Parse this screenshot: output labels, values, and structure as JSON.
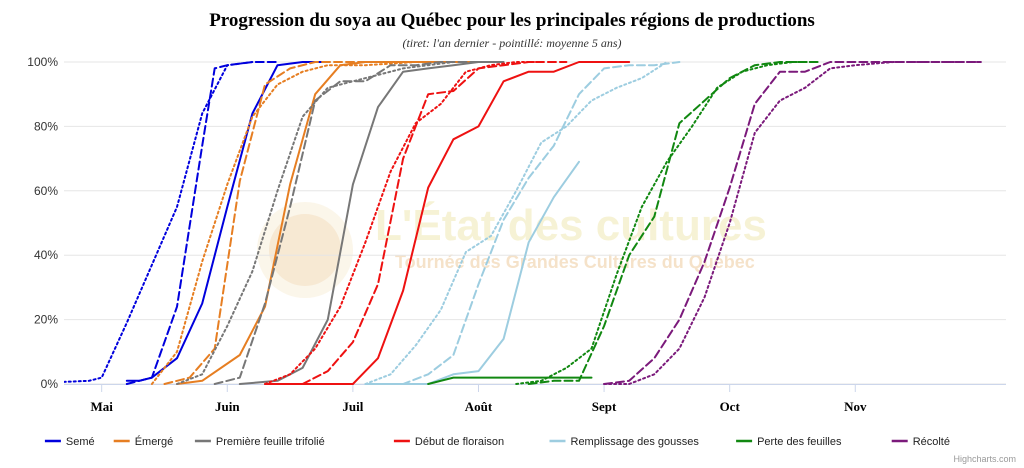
{
  "chart_data": {
    "type": "line",
    "title": "Progression du soya au Québec pour les principales régions de productions",
    "subtitle": "(tiret: l'an dernier - pointillé: moyenne 5 ans)",
    "xlabel": "",
    "ylabel": "",
    "xlim": [
      -3,
      72
    ],
    "ylim": [
      0,
      100
    ],
    "y_ticks": [
      0,
      20,
      40,
      60,
      80,
      100
    ],
    "y_tick_labels": [
      "0%",
      "20%",
      "40%",
      "60%",
      "80%",
      "100%"
    ],
    "x_ticks": [
      0,
      10,
      20,
      30,
      40,
      50,
      60
    ],
    "x_tick_labels": [
      "Mai",
      "Juin",
      "Juil",
      "Août",
      "Sept",
      "Oct",
      "Nov"
    ],
    "grid": "horizontal",
    "legend_position": "bottom",
    "legend": [
      "Semé",
      "Émergé",
      "Première feuille trifolié",
      "Début de floraison",
      "Remplissage des gousses",
      "Perte des feuilles",
      "Récolté"
    ],
    "series": [
      {
        "name": "Semé",
        "color": "#0000dd",
        "style": "solid",
        "points": [
          [
            2,
            1
          ],
          [
            3,
            1
          ],
          [
            4,
            2
          ],
          [
            6,
            8
          ],
          [
            8,
            25
          ],
          [
            10,
            55
          ],
          [
            12,
            84
          ],
          [
            14,
            99
          ],
          [
            16,
            100
          ],
          [
            18,
            100
          ]
        ]
      },
      {
        "name": "Semé",
        "color": "#0000dd",
        "style": "dash",
        "points": [
          [
            2,
            0
          ],
          [
            4,
            2
          ],
          [
            6,
            24
          ],
          [
            8,
            74
          ],
          [
            9,
            98
          ],
          [
            10,
            99
          ],
          [
            12,
            100
          ],
          [
            14,
            100
          ]
        ]
      },
      {
        "name": "Semé",
        "color": "#0000dd",
        "style": "dot",
        "points": [
          [
            -7,
            0
          ],
          [
            -1,
            1
          ],
          [
            0,
            2
          ],
          [
            2,
            19
          ],
          [
            4,
            37
          ],
          [
            6,
            55
          ],
          [
            8,
            84
          ],
          [
            10,
            99
          ],
          [
            12,
            100
          ]
        ]
      },
      {
        "name": "Émergé",
        "color": "#e67e22",
        "style": "solid",
        "points": [
          [
            6,
            0
          ],
          [
            8,
            1
          ],
          [
            11,
            9
          ],
          [
            13,
            24
          ],
          [
            15,
            62
          ],
          [
            17,
            90
          ],
          [
            19,
            99
          ],
          [
            21,
            100
          ],
          [
            24,
            100
          ],
          [
            28,
            100
          ]
        ]
      },
      {
        "name": "Émergé",
        "color": "#e67e22",
        "style": "dash",
        "points": [
          [
            5,
            0
          ],
          [
            7,
            2
          ],
          [
            9,
            11
          ],
          [
            11,
            63
          ],
          [
            13,
            93
          ],
          [
            15,
            98
          ],
          [
            17,
            100
          ],
          [
            19,
            100
          ],
          [
            22,
            100
          ],
          [
            25,
            100
          ],
          [
            27,
            100
          ],
          [
            29,
            100
          ],
          [
            31,
            100
          ]
        ]
      },
      {
        "name": "Émergé",
        "color": "#e67e22",
        "style": "dot",
        "points": [
          [
            4,
            0
          ],
          [
            6,
            10
          ],
          [
            8,
            38
          ],
          [
            10,
            62
          ],
          [
            12,
            83
          ],
          [
            14,
            93
          ],
          [
            16,
            97
          ],
          [
            18,
            99
          ],
          [
            21,
            99
          ],
          [
            25,
            100
          ],
          [
            28,
            100
          ]
        ]
      },
      {
        "name": "Première feuille trifolié",
        "color": "#777777",
        "style": "solid",
        "points": [
          [
            11,
            0
          ],
          [
            14,
            1
          ],
          [
            16,
            5
          ],
          [
            18,
            20
          ],
          [
            20,
            62
          ],
          [
            22,
            86
          ],
          [
            24,
            97
          ],
          [
            26,
            98
          ],
          [
            28,
            99
          ],
          [
            30,
            100
          ],
          [
            32,
            100
          ]
        ]
      },
      {
        "name": "Première feuille trifolié",
        "color": "#777777",
        "style": "dash",
        "points": [
          [
            9,
            0
          ],
          [
            11,
            2
          ],
          [
            13,
            25
          ],
          [
            15,
            55
          ],
          [
            17,
            88
          ],
          [
            19,
            94
          ],
          [
            21,
            94
          ],
          [
            23,
            99
          ],
          [
            25,
            99
          ],
          [
            27,
            100
          ],
          [
            29,
            100
          ],
          [
            31,
            100
          ]
        ]
      },
      {
        "name": "Première feuille trifolié",
        "color": "#777777",
        "style": "dot",
        "points": [
          [
            6,
            0
          ],
          [
            8,
            3
          ],
          [
            10,
            18
          ],
          [
            12,
            35
          ],
          [
            14,
            60
          ],
          [
            16,
            83
          ],
          [
            18,
            92
          ],
          [
            20,
            94
          ],
          [
            22,
            96
          ],
          [
            24,
            98
          ],
          [
            26,
            99
          ],
          [
            28,
            100
          ]
        ]
      },
      {
        "name": "Début de floraison",
        "color": "#ee1111",
        "style": "solid",
        "points": [
          [
            13,
            0
          ],
          [
            18,
            0
          ],
          [
            20,
            0
          ],
          [
            22,
            8
          ],
          [
            24,
            29
          ],
          [
            26,
            61
          ],
          [
            28,
            76
          ],
          [
            30,
            80
          ],
          [
            32,
            94
          ],
          [
            34,
            97
          ],
          [
            36,
            97
          ],
          [
            38,
            100
          ],
          [
            42,
            100
          ]
        ]
      },
      {
        "name": "Début de floraison",
        "color": "#ee1111",
        "style": "dash",
        "points": [
          [
            16,
            0
          ],
          [
            18,
            4
          ],
          [
            20,
            13
          ],
          [
            22,
            31
          ],
          [
            24,
            70
          ],
          [
            26,
            90
          ],
          [
            28,
            91
          ],
          [
            30,
            98
          ],
          [
            32,
            99
          ],
          [
            34,
            100
          ],
          [
            37,
            100
          ]
        ]
      },
      {
        "name": "Début de floraison",
        "color": "#ee1111",
        "style": "dot",
        "points": [
          [
            13,
            0
          ],
          [
            15,
            3
          ],
          [
            17,
            11
          ],
          [
            19,
            24
          ],
          [
            21,
            44
          ],
          [
            23,
            66
          ],
          [
            25,
            81
          ],
          [
            27,
            87
          ],
          [
            29,
            97
          ],
          [
            31,
            99
          ],
          [
            33,
            100
          ],
          [
            35,
            100
          ]
        ]
      },
      {
        "name": "Remplissage des gousses",
        "color": "#9dcde0",
        "style": "solid",
        "points": [
          [
            21,
            0
          ],
          [
            24,
            0
          ],
          [
            26,
            0
          ],
          [
            28,
            3
          ],
          [
            30,
            4
          ],
          [
            32,
            14
          ],
          [
            34,
            44
          ],
          [
            36,
            58
          ],
          [
            38,
            69
          ]
        ]
      },
      {
        "name": "Remplissage des gousses",
        "color": "#9dcde0",
        "style": "dash",
        "points": [
          [
            22,
            0
          ],
          [
            24,
            0
          ],
          [
            26,
            3
          ],
          [
            28,
            9
          ],
          [
            30,
            31
          ],
          [
            32,
            51
          ],
          [
            34,
            64
          ],
          [
            36,
            74
          ],
          [
            38,
            90
          ],
          [
            40,
            98
          ],
          [
            42,
            99
          ],
          [
            44,
            99
          ],
          [
            46,
            100
          ]
        ]
      },
      {
        "name": "Remplissage des gousses",
        "color": "#9dcde0",
        "style": "dot",
        "points": [
          [
            21,
            0
          ],
          [
            23,
            3
          ],
          [
            25,
            12
          ],
          [
            27,
            23
          ],
          [
            29,
            41
          ],
          [
            31,
            46
          ],
          [
            33,
            60
          ],
          [
            35,
            75
          ],
          [
            37,
            80
          ],
          [
            39,
            88
          ],
          [
            41,
            92
          ],
          [
            43,
            95
          ],
          [
            45,
            100
          ]
        ]
      },
      {
        "name": "Perte des feuilles",
        "color": "#118811",
        "style": "solid",
        "points": [
          [
            26,
            0
          ],
          [
            28,
            2
          ],
          [
            31,
            2
          ],
          [
            34,
            2
          ],
          [
            37,
            2
          ],
          [
            39,
            2
          ]
        ]
      },
      {
        "name": "Perte des feuilles",
        "color": "#118811",
        "style": "dash",
        "points": [
          [
            34,
            0
          ],
          [
            36,
            1
          ],
          [
            38,
            1
          ],
          [
            40,
            18
          ],
          [
            42,
            40
          ],
          [
            44,
            52
          ],
          [
            46,
            81
          ],
          [
            48,
            88
          ],
          [
            50,
            95
          ],
          [
            52,
            99
          ],
          [
            54,
            100
          ],
          [
            57,
            100
          ]
        ]
      },
      {
        "name": "Perte des feuilles",
        "color": "#118811",
        "style": "dot",
        "points": [
          [
            33,
            0
          ],
          [
            35,
            1
          ],
          [
            37,
            5
          ],
          [
            39,
            11
          ],
          [
            41,
            34
          ],
          [
            43,
            55
          ],
          [
            45,
            69
          ],
          [
            47,
            80
          ],
          [
            49,
            92
          ],
          [
            51,
            97
          ],
          [
            53,
            99
          ],
          [
            55,
            100
          ],
          [
            57,
            100
          ]
        ]
      },
      {
        "name": "Récolté",
        "color": "#7b1a7b",
        "style": "dash",
        "points": [
          [
            40,
            0
          ],
          [
            42,
            1
          ],
          [
            44,
            8
          ],
          [
            46,
            20
          ],
          [
            48,
            38
          ],
          [
            50,
            61
          ],
          [
            52,
            87
          ],
          [
            54,
            97
          ],
          [
            56,
            97
          ],
          [
            58,
            100
          ],
          [
            62,
            100
          ],
          [
            66,
            100
          ],
          [
            70,
            100
          ]
        ]
      },
      {
        "name": "Récolté",
        "color": "#7b1a7b",
        "style": "dot",
        "points": [
          [
            40,
            0
          ],
          [
            42,
            0
          ],
          [
            44,
            3
          ],
          [
            46,
            11
          ],
          [
            48,
            27
          ],
          [
            50,
            50
          ],
          [
            52,
            78
          ],
          [
            54,
            88
          ],
          [
            56,
            92
          ],
          [
            58,
            98
          ],
          [
            60,
            99
          ],
          [
            63,
            100
          ],
          [
            66,
            100
          ],
          [
            70,
            100
          ]
        ]
      }
    ]
  },
  "watermark": {
    "title": "L'État des cultures",
    "subtitle": "Tournée des Grandes Cultures du Québec"
  },
  "credits": "Highcharts.com"
}
